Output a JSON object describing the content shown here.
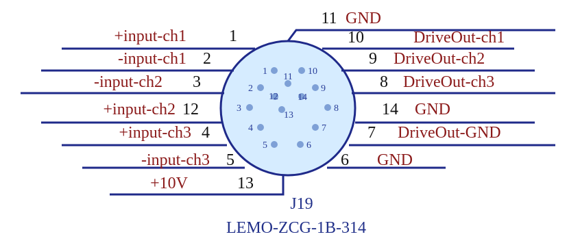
{
  "component": {
    "designator": "J19",
    "part_number": "LEMO-ZCG-1B-314"
  },
  "colors": {
    "wire": "#1f2a8a",
    "label": "#8b1a1a",
    "number": "#111111",
    "body_fill": "#d6ecff",
    "body_stroke": "#1f2a8a",
    "pin_hole": "#7ea0d6"
  },
  "left_pins": [
    {
      "number": "1",
      "label": "+input-ch1"
    },
    {
      "number": "2",
      "label": "-input-ch1"
    },
    {
      "number": "3",
      "label": "-input-ch2"
    },
    {
      "number": "12",
      "label": "+input-ch2"
    },
    {
      "number": "4",
      "label": "+input-ch3"
    },
    {
      "number": "5",
      "label": "-input-ch3"
    },
    {
      "number": "13",
      "label": "+10V"
    }
  ],
  "right_pins": [
    {
      "number": "11",
      "label": "GND"
    },
    {
      "number": "10",
      "label": "DriveOut-ch1"
    },
    {
      "number": "9",
      "label": "DriveOut-ch2"
    },
    {
      "number": "8",
      "label": "DriveOut-ch3"
    },
    {
      "number": "14",
      "label": "GND"
    },
    {
      "number": "7",
      "label": "DriveOut-GND"
    },
    {
      "number": "6",
      "label": "GND"
    }
  ],
  "face_pins": [
    "1",
    "2",
    "3",
    "4",
    "5",
    "6",
    "7",
    "8",
    "9",
    "10",
    "11",
    "12",
    "13",
    "14"
  ]
}
